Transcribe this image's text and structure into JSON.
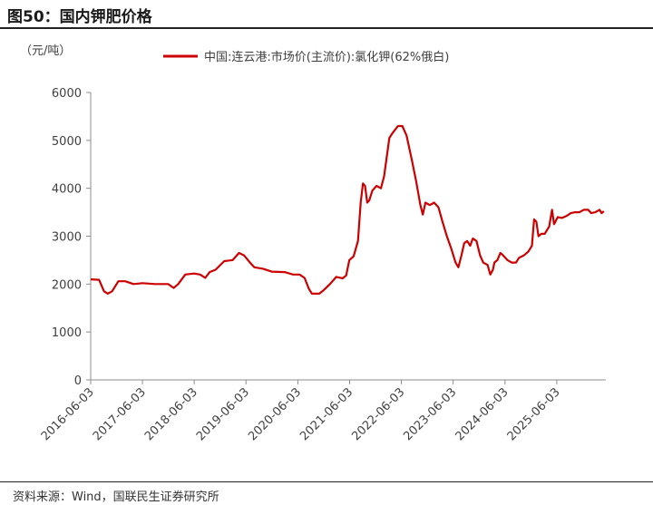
{
  "title": "图50：国内钾肥价格",
  "source": "资料来源：Wind，国联民生证券研究所",
  "chart_data": {
    "type": "line",
    "unit_label": "（元/吨）",
    "ylim": [
      0,
      6000
    ],
    "yticks": [
      0,
      1000,
      2000,
      3000,
      4000,
      5000,
      6000
    ],
    "xlim": [
      "2016-06-03",
      "2026-05-15"
    ],
    "xticks": [
      "2016-06-03",
      "2017-06-03",
      "2018-06-03",
      "2019-06-03",
      "2020-06-03",
      "2021-06-03",
      "2022-06-03",
      "2023-06-03",
      "2024-06-03",
      "2025-06-03"
    ],
    "legend_position": "top-right",
    "grid": false,
    "series": [
      {
        "name": "中国:连云港:市场价(主流价):氯化钾(62%俄白)",
        "color": "#cc0000",
        "points": [
          [
            "2016-06-03",
            2100
          ],
          [
            "2016-08-01",
            2090
          ],
          [
            "2016-09-05",
            1850
          ],
          [
            "2016-10-01",
            1800
          ],
          [
            "2016-11-01",
            1850
          ],
          [
            "2016-12-15",
            2060
          ],
          [
            "2017-02-01",
            2060
          ],
          [
            "2017-04-01",
            2000
          ],
          [
            "2017-06-03",
            2020
          ],
          [
            "2017-09-01",
            2000
          ],
          [
            "2017-12-01",
            2000
          ],
          [
            "2018-01-10",
            1920
          ],
          [
            "2018-02-10",
            2000
          ],
          [
            "2018-04-01",
            2200
          ],
          [
            "2018-06-01",
            2220
          ],
          [
            "2018-07-15",
            2200
          ],
          [
            "2018-08-20",
            2130
          ],
          [
            "2018-09-20",
            2250
          ],
          [
            "2018-11-01",
            2300
          ],
          [
            "2019-01-01",
            2480
          ],
          [
            "2019-03-01",
            2500
          ],
          [
            "2019-04-15",
            2650
          ],
          [
            "2019-05-20",
            2600
          ],
          [
            "2019-07-01",
            2450
          ],
          [
            "2019-08-01",
            2350
          ],
          [
            "2019-10-01",
            2320
          ],
          [
            "2019-12-01",
            2260
          ],
          [
            "2020-03-01",
            2250
          ],
          [
            "2020-05-01",
            2200
          ],
          [
            "2020-06-15",
            2200
          ],
          [
            "2020-07-20",
            2130
          ],
          [
            "2020-08-20",
            1900
          ],
          [
            "2020-09-10",
            1800
          ],
          [
            "2020-11-01",
            1800
          ],
          [
            "2020-12-01",
            1870
          ],
          [
            "2021-01-15",
            2000
          ],
          [
            "2021-03-01",
            2150
          ],
          [
            "2021-04-15",
            2120
          ],
          [
            "2021-05-10",
            2180
          ],
          [
            "2021-06-01",
            2500
          ],
          [
            "2021-07-01",
            2580
          ],
          [
            "2021-08-01",
            2900
          ],
          [
            "2021-08-20",
            3700
          ],
          [
            "2021-09-05",
            4100
          ],
          [
            "2021-09-20",
            4050
          ],
          [
            "2021-10-05",
            3700
          ],
          [
            "2021-10-20",
            3750
          ],
          [
            "2021-11-10",
            3950
          ],
          [
            "2021-12-10",
            4050
          ],
          [
            "2022-01-10",
            4000
          ],
          [
            "2022-02-01",
            4250
          ],
          [
            "2022-02-20",
            4650
          ],
          [
            "2022-03-10",
            5050
          ],
          [
            "2022-04-01",
            5150
          ],
          [
            "2022-05-10",
            5300
          ],
          [
            "2022-06-10",
            5300
          ],
          [
            "2022-07-10",
            5100
          ],
          [
            "2022-08-15",
            4600
          ],
          [
            "2022-09-15",
            4150
          ],
          [
            "2022-10-15",
            3650
          ],
          [
            "2022-11-01",
            3450
          ],
          [
            "2022-11-20",
            3700
          ],
          [
            "2022-12-20",
            3650
          ],
          [
            "2023-01-20",
            3700
          ],
          [
            "2023-02-20",
            3600
          ],
          [
            "2023-03-20",
            3300
          ],
          [
            "2023-04-20",
            3000
          ],
          [
            "2023-05-20",
            2750
          ],
          [
            "2023-06-20",
            2450
          ],
          [
            "2023-07-10",
            2350
          ],
          [
            "2023-08-01",
            2600
          ],
          [
            "2023-08-20",
            2850
          ],
          [
            "2023-09-10",
            2900
          ],
          [
            "2023-10-01",
            2800
          ],
          [
            "2023-10-20",
            2950
          ],
          [
            "2023-11-15",
            2900
          ],
          [
            "2023-12-10",
            2600
          ],
          [
            "2024-01-01",
            2450
          ],
          [
            "2024-02-01",
            2400
          ],
          [
            "2024-02-20",
            2200
          ],
          [
            "2024-03-10",
            2300
          ],
          [
            "2024-03-20",
            2450
          ],
          [
            "2024-04-10",
            2500
          ],
          [
            "2024-05-01",
            2650
          ],
          [
            "2024-05-20",
            2600
          ],
          [
            "2024-06-20",
            2500
          ],
          [
            "2024-07-20",
            2450
          ],
          [
            "2024-08-20",
            2450
          ],
          [
            "2024-09-10",
            2550
          ],
          [
            "2024-10-15",
            2600
          ],
          [
            "2024-11-15",
            2680
          ],
          [
            "2024-12-10",
            2800
          ],
          [
            "2024-12-25",
            3350
          ],
          [
            "2025-01-10",
            3300
          ],
          [
            "2025-01-25",
            3000
          ],
          [
            "2025-02-15",
            3050
          ],
          [
            "2025-03-10",
            3050
          ],
          [
            "2025-04-10",
            3200
          ],
          [
            "2025-05-01",
            3550
          ],
          [
            "2025-05-15",
            3250
          ],
          [
            "2025-06-10",
            3400
          ],
          [
            "2025-07-10",
            3380
          ],
          [
            "2025-08-10",
            3420
          ],
          [
            "2025-09-10",
            3480
          ],
          [
            "2025-10-10",
            3500
          ],
          [
            "2025-11-10",
            3500
          ],
          [
            "2025-12-10",
            3550
          ],
          [
            "2026-01-10",
            3550
          ],
          [
            "2026-02-01",
            3480
          ],
          [
            "2026-03-01",
            3500
          ],
          [
            "2026-04-01",
            3550
          ],
          [
            "2026-04-15",
            3480
          ],
          [
            "2026-05-01",
            3520
          ]
        ]
      }
    ]
  }
}
